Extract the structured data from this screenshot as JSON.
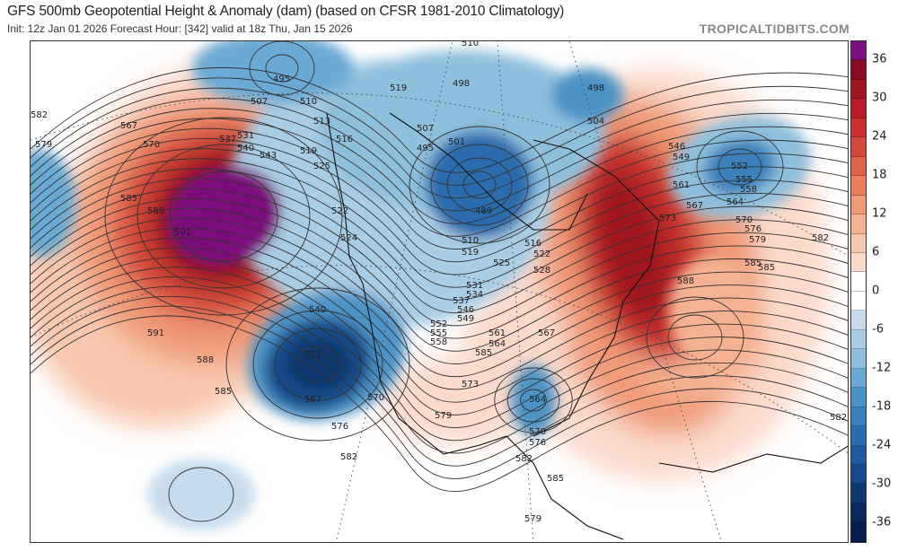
{
  "header": {
    "title": "GFS 500mb Geopotential Height & Anomaly (dam) (based on CFSR 1981-2010 Climatology)",
    "subtitle": "Init: 12z Jan 01 2026   Forecast Hour: [342]   valid at 18z Thu, Jan 15 2026",
    "brand": "TROPICALTIDBITS.COM"
  },
  "colorbar": {
    "labels": [
      "36",
      "30",
      "24",
      "18",
      "12",
      "6",
      "0",
      "-6",
      "-12",
      "-18",
      "-24",
      "-30",
      "-36"
    ],
    "colors": [
      "#7b0f7d",
      "#8a0b22",
      "#a0131f",
      "#b81c27",
      "#c9302f",
      "#d5483a",
      "#e0634b",
      "#ea7e5f",
      "#f09a77",
      "#f5b293",
      "#f8c8ae",
      "#fbdacb",
      "#ffffff",
      "#ffffff",
      "#c6dcec",
      "#a9cde4",
      "#8ebfdd",
      "#6ba9d3",
      "#4b93c6",
      "#3a80bb",
      "#2a6cad",
      "#1f5a9e",
      "#164a8a",
      "#0f3870",
      "#0a2a5e",
      "#081d4e"
    ]
  },
  "map": {
    "contour_labels": [
      "582",
      "579",
      "567",
      "570",
      "585",
      "588",
      "591",
      "591",
      "588",
      "585",
      "585",
      "582",
      "579",
      "507",
      "495",
      "510",
      "537",
      "531",
      "540",
      "543",
      "519",
      "513",
      "516",
      "525",
      "522",
      "524",
      "498",
      "495",
      "501",
      "489",
      "510",
      "519",
      "516",
      "522",
      "525",
      "528",
      "531",
      "534",
      "537",
      "546",
      "549",
      "552",
      "555",
      "558",
      "561",
      "564",
      "567",
      "540",
      "551",
      "567",
      "570",
      "576",
      "573",
      "579",
      "564",
      "570",
      "576",
      "582",
      "585",
      "582",
      "546",
      "549",
      "552",
      "555",
      "558",
      "561",
      "564",
      "567",
      "570",
      "573",
      "576",
      "579",
      "582",
      "585",
      "588",
      "498",
      "504",
      "510",
      "507",
      "519",
      "585"
    ]
  }
}
